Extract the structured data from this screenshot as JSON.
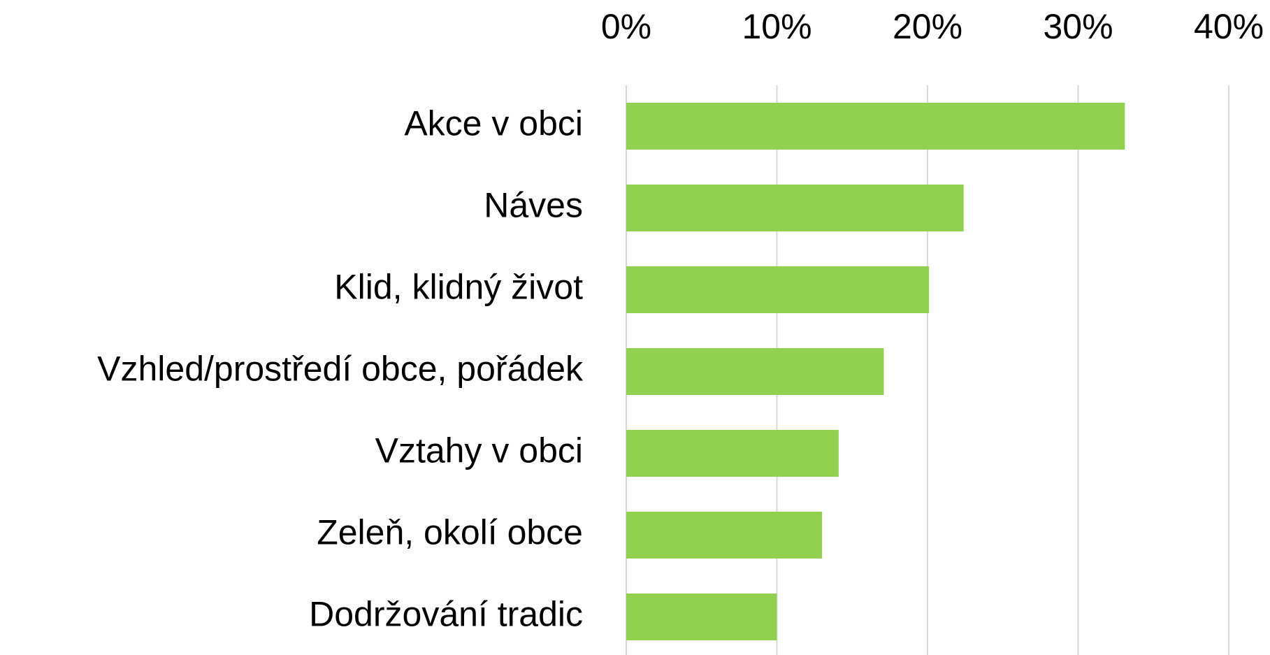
{
  "chart_data": {
    "type": "bar",
    "orientation": "horizontal",
    "categories": [
      "Akce v obci",
      "Náves",
      "Klid, klidný život",
      "Vzhled/prostředí obce, pořádek",
      "Vztahy v obci",
      "Zeleň, okolí obce",
      "Dodržování tradic"
    ],
    "values": [
      33.1,
      22.4,
      20.1,
      17.1,
      14.1,
      13.0,
      10.0
    ],
    "color": "#92d050",
    "xlim": [
      0,
      40
    ],
    "xticks": [
      {
        "value": 0,
        "label": "0%"
      },
      {
        "value": 10,
        "label": "10%"
      },
      {
        "value": 20,
        "label": "20%"
      },
      {
        "value": 30,
        "label": "30%"
      },
      {
        "value": 40,
        "label": "40%"
      }
    ],
    "grid": true
  }
}
